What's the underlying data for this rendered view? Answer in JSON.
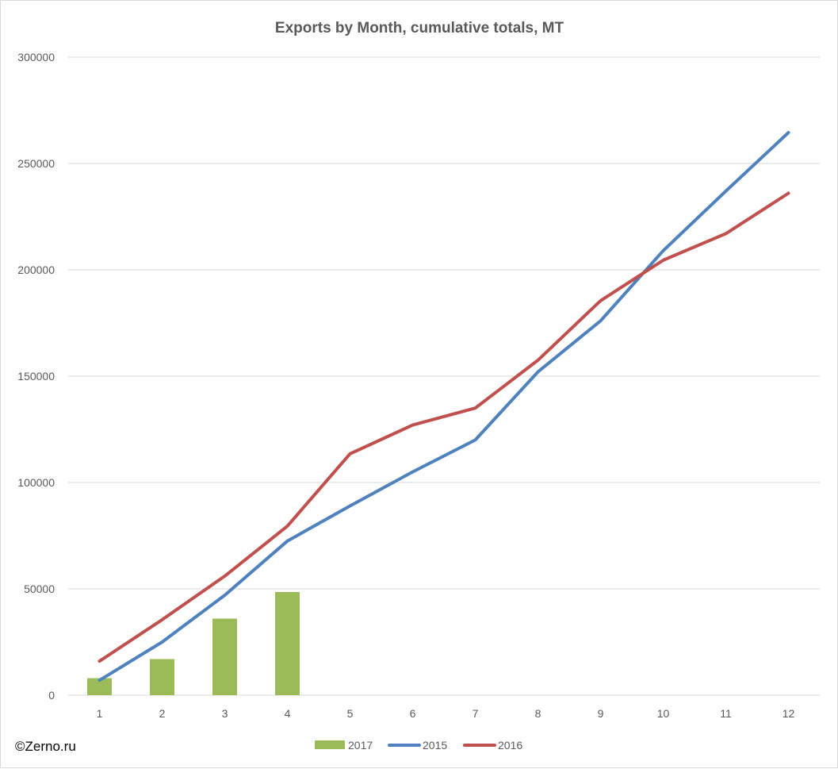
{
  "copyright": "©Zerno.ru",
  "colors": {
    "s2017": "#9bbb59",
    "s2015": "#4f81bd",
    "s2016": "#c0504d",
    "grid": "#d9d9d9",
    "text": "#595959"
  },
  "chart_data": {
    "type": "bar",
    "title": "Exports by Month, cumulative totals, MT",
    "xlabel": "",
    "ylabel": "",
    "categories": [
      "1",
      "2",
      "3",
      "4",
      "5",
      "6",
      "7",
      "8",
      "9",
      "10",
      "11",
      "12"
    ],
    "ylim": [
      0,
      300000
    ],
    "yticks": [
      "0",
      "50000",
      "100000",
      "150000",
      "200000",
      "250000",
      "300000"
    ],
    "grid": true,
    "legend_position": "bottom",
    "series": [
      {
        "name": "2017",
        "type": "bar",
        "color": "#9bbb59",
        "values": [
          8000,
          17000,
          36000,
          48500,
          null,
          null,
          null,
          null,
          null,
          null,
          null,
          null
        ]
      },
      {
        "name": "2015",
        "type": "line",
        "color": "#4f81bd",
        "values": [
          7000,
          25000,
          47000,
          72500,
          89000,
          105000,
          120000,
          152000,
          176000,
          209000,
          237000,
          264500
        ]
      },
      {
        "name": "2016",
        "type": "line",
        "color": "#c0504d",
        "values": [
          16000,
          35500,
          56000,
          79500,
          113500,
          127000,
          135000,
          157500,
          185500,
          204500,
          217000,
          236000
        ]
      }
    ]
  }
}
